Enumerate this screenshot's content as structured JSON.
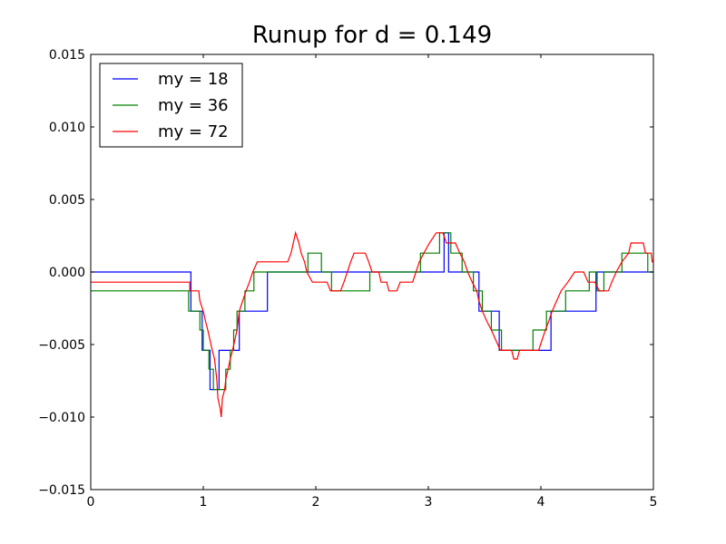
{
  "chart_data": {
    "type": "line",
    "title": "Runup for d = 0.149",
    "xlabel": "",
    "ylabel": "",
    "xlim": [
      0,
      5
    ],
    "ylim": [
      -0.015,
      0.015
    ],
    "xticks": [
      0,
      1,
      2,
      3,
      4,
      5
    ],
    "xtick_labels": [
      "0",
      "1",
      "2",
      "3",
      "4",
      "5"
    ],
    "yticks": [
      -0.015,
      -0.01,
      -0.005,
      0.0,
      0.005,
      0.01,
      0.015
    ],
    "ytick_labels": [
      "−0.015",
      "−0.010",
      "−0.005",
      "0.000",
      "0.005",
      "0.010",
      "0.015"
    ],
    "grid": false,
    "legend_position": "top-left",
    "series": [
      {
        "name": "my = 18",
        "color": "#0000ff",
        "points": [
          [
            0,
            0
          ],
          [
            0.89,
            0
          ],
          [
            0.89,
            -0.0027
          ],
          [
            0.99,
            -0.0027
          ],
          [
            0.99,
            -0.0054
          ],
          [
            1.06,
            -0.0054
          ],
          [
            1.06,
            -0.0081
          ],
          [
            1.14,
            -0.0081
          ],
          [
            1.14,
            -0.0054
          ],
          [
            1.32,
            -0.0054
          ],
          [
            1.32,
            -0.0027
          ],
          [
            1.57,
            -0.0027
          ],
          [
            1.57,
            0
          ],
          [
            3.14,
            0
          ],
          [
            3.14,
            0.0027
          ],
          [
            3.18,
            0.0027
          ],
          [
            3.18,
            0
          ],
          [
            3.45,
            0
          ],
          [
            3.45,
            -0.0027
          ],
          [
            3.63,
            -0.0027
          ],
          [
            3.63,
            -0.0054
          ],
          [
            4.09,
            -0.0054
          ],
          [
            4.09,
            -0.0027
          ],
          [
            4.49,
            -0.0027
          ],
          [
            4.49,
            0
          ],
          [
            5,
            0
          ]
        ]
      },
      {
        "name": "my = 36",
        "color": "#008000",
        "points": [
          [
            0,
            -0.0013
          ],
          [
            0.87,
            -0.0013
          ],
          [
            0.87,
            -0.0027
          ],
          [
            0.97,
            -0.0027
          ],
          [
            0.97,
            -0.004
          ],
          [
            1.0,
            -0.004
          ],
          [
            1.0,
            -0.0054
          ],
          [
            1.05,
            -0.0054
          ],
          [
            1.05,
            -0.0067
          ],
          [
            1.09,
            -0.0067
          ],
          [
            1.09,
            -0.0081
          ],
          [
            1.2,
            -0.0081
          ],
          [
            1.2,
            -0.0067
          ],
          [
            1.24,
            -0.0067
          ],
          [
            1.24,
            -0.0054
          ],
          [
            1.27,
            -0.0054
          ],
          [
            1.27,
            -0.004
          ],
          [
            1.3,
            -0.004
          ],
          [
            1.3,
            -0.0027
          ],
          [
            1.37,
            -0.0027
          ],
          [
            1.37,
            -0.0013
          ],
          [
            1.45,
            -0.0013
          ],
          [
            1.45,
            0
          ],
          [
            1.93,
            0
          ],
          [
            1.93,
            0.0013
          ],
          [
            2.05,
            0.0013
          ],
          [
            2.05,
            0
          ],
          [
            2.14,
            0
          ],
          [
            2.14,
            -0.0013
          ],
          [
            2.48,
            -0.0013
          ],
          [
            2.48,
            0
          ],
          [
            2.93,
            0
          ],
          [
            2.93,
            0.0013
          ],
          [
            3.1,
            0.0013
          ],
          [
            3.1,
            0.0027
          ],
          [
            3.2,
            0.0027
          ],
          [
            3.2,
            0.0013
          ],
          [
            3.3,
            0.0013
          ],
          [
            3.3,
            0
          ],
          [
            3.4,
            0
          ],
          [
            3.4,
            -0.0013
          ],
          [
            3.48,
            -0.0013
          ],
          [
            3.48,
            -0.0027
          ],
          [
            3.56,
            -0.0027
          ],
          [
            3.56,
            -0.004
          ],
          [
            3.65,
            -0.004
          ],
          [
            3.65,
            -0.0054
          ],
          [
            3.93,
            -0.0054
          ],
          [
            3.93,
            -0.004
          ],
          [
            4.05,
            -0.004
          ],
          [
            4.05,
            -0.0027
          ],
          [
            4.22,
            -0.0027
          ],
          [
            4.22,
            -0.0013
          ],
          [
            4.43,
            -0.0013
          ],
          [
            4.43,
            0
          ],
          [
            4.5,
            0
          ],
          [
            4.5,
            -0.0013
          ],
          [
            4.56,
            -0.0013
          ],
          [
            4.56,
            0
          ],
          [
            4.72,
            0
          ],
          [
            4.72,
            0.0013
          ],
          [
            4.95,
            0.0013
          ],
          [
            4.95,
            0
          ],
          [
            5,
            0
          ]
        ]
      },
      {
        "name": "my = 72",
        "color": "#ff0000",
        "points": [
          [
            0,
            -0.0007
          ],
          [
            0.88,
            -0.0007
          ],
          [
            0.88,
            -0.0013
          ],
          [
            0.96,
            -0.0013
          ],
          [
            0.97,
            -0.002
          ],
          [
            1.0,
            -0.0027
          ],
          [
            1.02,
            -0.0034
          ],
          [
            1.04,
            -0.004
          ],
          [
            1.06,
            -0.0047
          ],
          [
            1.08,
            -0.0054
          ],
          [
            1.1,
            -0.006
          ],
          [
            1.11,
            -0.0067
          ],
          [
            1.12,
            -0.0074
          ],
          [
            1.13,
            -0.0087
          ],
          [
            1.15,
            -0.0094
          ],
          [
            1.16,
            -0.01
          ],
          [
            1.17,
            -0.0087
          ],
          [
            1.19,
            -0.0081
          ],
          [
            1.2,
            -0.0074
          ],
          [
            1.22,
            -0.0067
          ],
          [
            1.24,
            -0.006
          ],
          [
            1.26,
            -0.0054
          ],
          [
            1.28,
            -0.0047
          ],
          [
            1.3,
            -0.004
          ],
          [
            1.32,
            -0.0027
          ],
          [
            1.35,
            -0.002
          ],
          [
            1.38,
            -0.0013
          ],
          [
            1.41,
            -0.0007
          ],
          [
            1.44,
            0
          ],
          [
            1.48,
            0.0007
          ],
          [
            1.75,
            0.0007
          ],
          [
            1.78,
            0.0013
          ],
          [
            1.8,
            0.002
          ],
          [
            1.82,
            0.0027
          ],
          [
            1.85,
            0.002
          ],
          [
            1.87,
            0.0013
          ],
          [
            1.9,
            0.0007
          ],
          [
            1.92,
            0
          ],
          [
            1.97,
            -0.0007
          ],
          [
            2.1,
            -0.0007
          ],
          [
            2.13,
            -0.0013
          ],
          [
            2.22,
            -0.0013
          ],
          [
            2.25,
            -0.0007
          ],
          [
            2.28,
            0
          ],
          [
            2.31,
            0.0007
          ],
          [
            2.34,
            0.0013
          ],
          [
            2.44,
            0.0013
          ],
          [
            2.47,
            0.0007
          ],
          [
            2.5,
            0
          ],
          [
            2.56,
            0
          ],
          [
            2.58,
            -0.0007
          ],
          [
            2.63,
            -0.0007
          ],
          [
            2.65,
            -0.0013
          ],
          [
            2.72,
            -0.0013
          ],
          [
            2.75,
            -0.0007
          ],
          [
            2.86,
            -0.0007
          ],
          [
            2.89,
            0
          ],
          [
            2.92,
            0.0007
          ],
          [
            2.96,
            0.0013
          ],
          [
            3.01,
            0.002
          ],
          [
            3.07,
            0.0027
          ],
          [
            3.13,
            0.0027
          ],
          [
            3.16,
            0.002
          ],
          [
            3.24,
            0.002
          ],
          [
            3.28,
            0.0013
          ],
          [
            3.32,
            0.0007
          ],
          [
            3.35,
            0
          ],
          [
            3.39,
            -0.0007
          ],
          [
            3.43,
            -0.0013
          ],
          [
            3.45,
            -0.002
          ],
          [
            3.48,
            -0.0027
          ],
          [
            3.52,
            -0.0034
          ],
          [
            3.56,
            -0.004
          ],
          [
            3.6,
            -0.0047
          ],
          [
            3.64,
            -0.0054
          ],
          [
            3.74,
            -0.0054
          ],
          [
            3.76,
            -0.006
          ],
          [
            3.79,
            -0.006
          ],
          [
            3.81,
            -0.0054
          ],
          [
            3.98,
            -0.0054
          ],
          [
            4.01,
            -0.0047
          ],
          [
            4.04,
            -0.004
          ],
          [
            4.07,
            -0.0034
          ],
          [
            4.1,
            -0.0027
          ],
          [
            4.14,
            -0.002
          ],
          [
            4.18,
            -0.0013
          ],
          [
            4.24,
            -0.0007
          ],
          [
            4.3,
            0
          ],
          [
            4.38,
            0
          ],
          [
            4.42,
            -0.0007
          ],
          [
            4.48,
            -0.0007
          ],
          [
            4.52,
            -0.0013
          ],
          [
            4.6,
            -0.0013
          ],
          [
            4.63,
            -0.0007
          ],
          [
            4.67,
            0
          ],
          [
            4.72,
            0.0007
          ],
          [
            4.78,
            0.0013
          ],
          [
            4.8,
            0.002
          ],
          [
            4.91,
            0.002
          ],
          [
            4.93,
            0.0013
          ],
          [
            4.98,
            0.0013
          ],
          [
            4.99,
            0.0007
          ],
          [
            5,
            0.0007
          ]
        ]
      }
    ]
  }
}
